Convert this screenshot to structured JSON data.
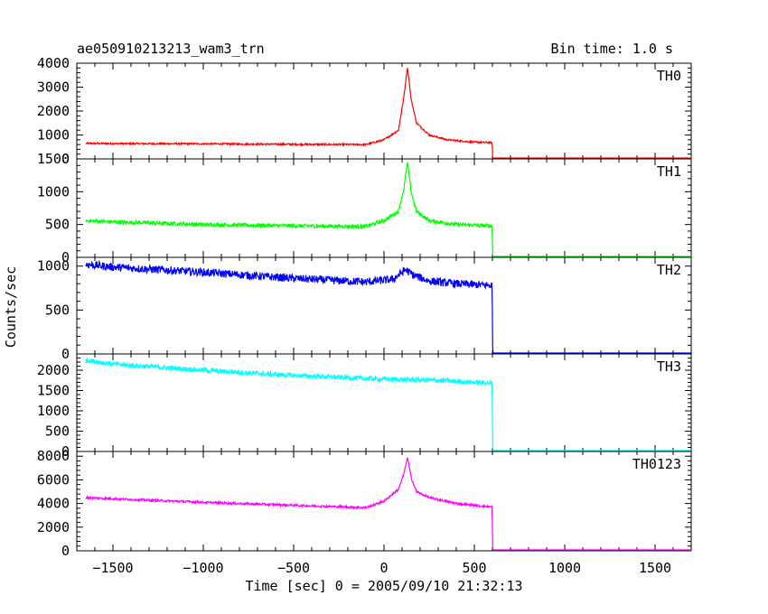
{
  "figure": {
    "title": "ae050910213213_wam3_trn",
    "bin_time": "Bin time: 1.0 s",
    "xlabel": "Time [sec] 0 = 2005/09/10 21:32:13",
    "ylabel": "Counts/sec"
  },
  "chart_data": {
    "type": "line",
    "xlim": [
      -1700,
      1700
    ],
    "x_ticks": [
      -1500,
      -1000,
      -500,
      0,
      500,
      1000,
      1500
    ],
    "x_tick_labels": [
      "−1500",
      "−1000",
      "−500",
      "0",
      "500",
      "1000",
      "1500"
    ],
    "grid": false,
    "panels": [
      {
        "name": "TH0",
        "color": "#ff0000",
        "ylim": [
          0,
          4000
        ],
        "y_ticks": [
          0,
          1000,
          2000,
          3000,
          4000
        ],
        "y_tick_labels": [
          "0",
          "1000",
          "2000",
          "3000",
          "4000"
        ],
        "series": [
          [
            -1650,
            650
          ],
          [
            -1500,
            640
          ],
          [
            -1000,
            630
          ],
          [
            -500,
            610
          ],
          [
            -100,
            600
          ],
          [
            0,
            800
          ],
          [
            80,
            1200
          ],
          [
            110,
            2600
          ],
          [
            130,
            3850
          ],
          [
            150,
            2500
          ],
          [
            180,
            1500
          ],
          [
            250,
            1000
          ],
          [
            350,
            800
          ],
          [
            500,
            700
          ],
          [
            598,
            680
          ],
          [
            602,
            0
          ],
          [
            1700,
            0
          ]
        ],
        "noise": 35
      },
      {
        "name": "TH1",
        "color": "#00ff00",
        "ylim": [
          0,
          1500
        ],
        "y_ticks": [
          0,
          500,
          1000,
          1500
        ],
        "y_tick_labels": [
          "0",
          "500",
          "1000",
          "1500"
        ],
        "series": [
          [
            -1650,
            560
          ],
          [
            -1500,
            540
          ],
          [
            -1000,
            500
          ],
          [
            -500,
            480
          ],
          [
            -100,
            470
          ],
          [
            0,
            560
          ],
          [
            80,
            700
          ],
          [
            110,
            1050
          ],
          [
            130,
            1450
          ],
          [
            150,
            1000
          ],
          [
            180,
            700
          ],
          [
            250,
            560
          ],
          [
            400,
            500
          ],
          [
            598,
            480
          ],
          [
            602,
            0
          ],
          [
            1700,
            0
          ]
        ],
        "noise": 30
      },
      {
        "name": "TH2",
        "color": "#0000ff",
        "ylim": [
          0,
          1100
        ],
        "y_ticks": [
          0,
          500,
          1000
        ],
        "y_tick_labels": [
          "0",
          "500",
          "1000"
        ],
        "series": [
          [
            -1650,
            1020
          ],
          [
            -1500,
            990
          ],
          [
            -1000,
            930
          ],
          [
            -500,
            860
          ],
          [
            -100,
            820
          ],
          [
            50,
            850
          ],
          [
            120,
            960
          ],
          [
            160,
            900
          ],
          [
            250,
            830
          ],
          [
            400,
            800
          ],
          [
            598,
            780
          ],
          [
            602,
            0
          ],
          [
            1700,
            0
          ]
        ],
        "noise": 45
      },
      {
        "name": "TH3",
        "color": "#00ffff",
        "ylim": [
          0,
          2400
        ],
        "y_ticks": [
          0,
          500,
          1000,
          1500,
          2000
        ],
        "y_tick_labels": [
          "0",
          "500",
          "1000",
          "1500",
          "2000"
        ],
        "series": [
          [
            -1650,
            2250
          ],
          [
            -1500,
            2150
          ],
          [
            -1000,
            2000
          ],
          [
            -500,
            1870
          ],
          [
            0,
            1780
          ],
          [
            300,
            1750
          ],
          [
            598,
            1680
          ],
          [
            602,
            0
          ],
          [
            1700,
            0
          ]
        ],
        "noise": 60
      },
      {
        "name": "TH0123",
        "color": "#ff00ff",
        "ylim": [
          0,
          8400
        ],
        "y_ticks": [
          0,
          2000,
          4000,
          6000,
          8000
        ],
        "y_tick_labels": [
          "0",
          "2000",
          "4000",
          "6000",
          "8000"
        ],
        "series": [
          [
            -1650,
            4500
          ],
          [
            -1500,
            4400
          ],
          [
            -1000,
            4100
          ],
          [
            -500,
            3850
          ],
          [
            -100,
            3650
          ],
          [
            0,
            4200
          ],
          [
            80,
            5200
          ],
          [
            110,
            6500
          ],
          [
            130,
            7900
          ],
          [
            150,
            6200
          ],
          [
            180,
            5000
          ],
          [
            250,
            4500
          ],
          [
            400,
            4000
          ],
          [
            598,
            3700
          ],
          [
            602,
            0
          ],
          [
            1700,
            0
          ]
        ],
        "noise": 90
      }
    ]
  }
}
